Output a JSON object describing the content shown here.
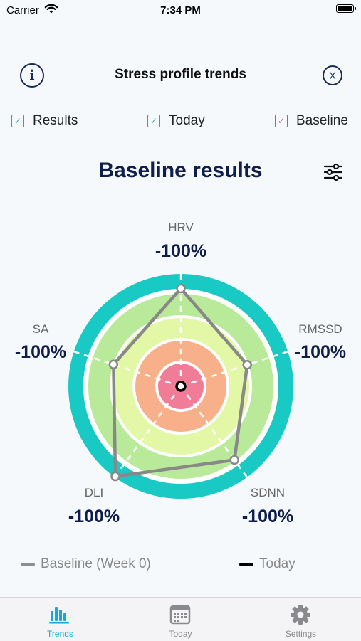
{
  "status_bar": {
    "carrier": "Carrier",
    "time": "7:34 PM"
  },
  "header": {
    "title": "Stress profile trends",
    "info_icon": "info-icon",
    "close_icon": "close-icon"
  },
  "filters": [
    {
      "label": "Results",
      "checked": true,
      "color": "#1ea6c4"
    },
    {
      "label": "Today",
      "checked": true,
      "color": "#1ea6c4"
    },
    {
      "label": "Baseline",
      "checked": true,
      "color": "#c44bb0"
    }
  ],
  "section": {
    "title": "Baseline results",
    "settings_icon": "sliders-icon"
  },
  "chart_data": {
    "type": "radar",
    "axes": [
      {
        "name": "HRV",
        "value_label": "-100%"
      },
      {
        "name": "RMSSD",
        "value_label": "-100%"
      },
      {
        "name": "SDNN",
        "value_label": "-100%"
      },
      {
        "name": "DLI",
        "value_label": "-100%"
      },
      {
        "name": "SA",
        "value_label": "-100%"
      }
    ],
    "baseline_polygon_levels": [
      0.87,
      0.62,
      0.81,
      0.99,
      0.63
    ],
    "today_point_levels": [
      0,
      0,
      0,
      0,
      0
    ],
    "series": [
      {
        "name": "Baseline (Week 0)",
        "color": "#888888"
      },
      {
        "name": "Today",
        "color": "#000000"
      }
    ],
    "band_colors": [
      "#19c9c4",
      "#b8ea9a",
      "#e3f8a6",
      "#f7b089",
      "#f07c98"
    ]
  },
  "legend": [
    {
      "label": "Baseline (Week 0)",
      "color": "#8e8e8e"
    },
    {
      "label": "Today",
      "color": "#000000"
    }
  ],
  "tabs": [
    {
      "label": "Trends",
      "icon": "bar-chart-icon",
      "active": true
    },
    {
      "label": "Today",
      "icon": "calendar-icon",
      "active": false
    },
    {
      "label": "Settings",
      "icon": "gear-icon",
      "active": false
    }
  ]
}
